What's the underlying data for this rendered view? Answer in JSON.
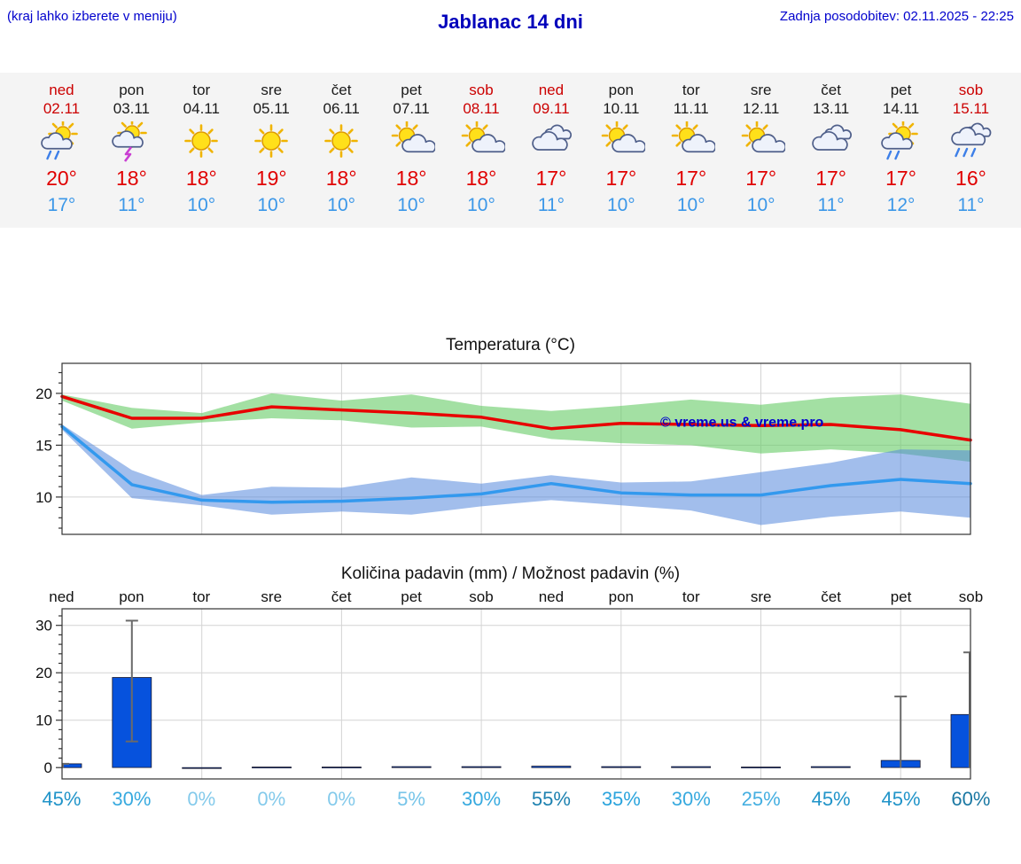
{
  "header": {
    "left_note": "(kraj lahko izberete v meniju)",
    "title": "Jablanac 14 dni",
    "last_update": "Zadnja posodobitev: 02.11.2025 - 22:25"
  },
  "colors": {
    "accent_blue": "#0000cd",
    "high_temp": "#e00000",
    "low_temp": "#3b97e8",
    "weekend_red": "#cc0000",
    "bar_blue": "#0652dd"
  },
  "forecast": {
    "days": [
      {
        "day": "ned",
        "date": "02.11",
        "icon": "sun-rain",
        "high": "20°",
        "low": "17°",
        "weekend": true
      },
      {
        "day": "pon",
        "date": "03.11",
        "icon": "sun-storm",
        "high": "18°",
        "low": "11°",
        "weekend": false
      },
      {
        "day": "tor",
        "date": "04.11",
        "icon": "sun",
        "high": "18°",
        "low": "10°",
        "weekend": false
      },
      {
        "day": "sre",
        "date": "05.11",
        "icon": "sun",
        "high": "19°",
        "low": "10°",
        "weekend": false
      },
      {
        "day": "čet",
        "date": "06.11",
        "icon": "sun",
        "high": "18°",
        "low": "10°",
        "weekend": false
      },
      {
        "day": "pet",
        "date": "07.11",
        "icon": "sun-cloud",
        "high": "18°",
        "low": "10°",
        "weekend": false
      },
      {
        "day": "sob",
        "date": "08.11",
        "icon": "sun-cloud",
        "high": "18°",
        "low": "10°",
        "weekend": true
      },
      {
        "day": "ned",
        "date": "09.11",
        "icon": "cloud",
        "high": "17°",
        "low": "11°",
        "weekend": true
      },
      {
        "day": "pon",
        "date": "10.11",
        "icon": "sun-cloud",
        "high": "17°",
        "low": "10°",
        "weekend": false
      },
      {
        "day": "tor",
        "date": "11.11",
        "icon": "sun-cloud",
        "high": "17°",
        "low": "10°",
        "weekend": false
      },
      {
        "day": "sre",
        "date": "12.11",
        "icon": "sun-cloud",
        "high": "17°",
        "low": "10°",
        "weekend": false
      },
      {
        "day": "čet",
        "date": "13.11",
        "icon": "cloud",
        "high": "17°",
        "low": "11°",
        "weekend": false
      },
      {
        "day": "pet",
        "date": "14.11",
        "icon": "sun-rain",
        "high": "17°",
        "low": "12°",
        "weekend": false
      },
      {
        "day": "sob",
        "date": "15.11",
        "icon": "cloud-rain",
        "high": "16°",
        "low": "11°",
        "weekend": true
      }
    ]
  },
  "chart_data": [
    {
      "type": "line",
      "title": "Temperatura (°C)",
      "categories": [
        "ned",
        "pon",
        "tor",
        "sre",
        "čet",
        "pet",
        "sob",
        "ned",
        "pon",
        "tor",
        "sre",
        "čet",
        "pet",
        "sob"
      ],
      "series": [
        {
          "name": "max temperature",
          "color": "#e80000",
          "values": [
            19.7,
            17.6,
            17.6,
            18.7,
            18.4,
            18.1,
            17.7,
            16.6,
            17.1,
            17.0,
            16.9,
            17.0,
            16.5,
            15.5
          ]
        },
        {
          "name": "min temperature",
          "color": "#3399ee",
          "values": [
            16.8,
            11.2,
            9.7,
            9.5,
            9.6,
            9.9,
            10.3,
            11.3,
            10.4,
            10.2,
            10.2,
            11.1,
            11.7,
            11.3
          ]
        }
      ],
      "bands": [
        {
          "name": "max range",
          "color": "#66cc66",
          "opacity": 0.6,
          "upper": [
            19.9,
            18.6,
            18.1,
            20.0,
            19.3,
            19.9,
            18.8,
            18.3,
            18.8,
            19.4,
            18.9,
            19.6,
            19.9,
            19.0
          ],
          "lower": [
            19.3,
            16.6,
            17.2,
            17.6,
            17.4,
            16.7,
            16.8,
            15.6,
            15.2,
            15.0,
            14.2,
            14.6,
            14.2,
            13.4
          ]
        },
        {
          "name": "min range",
          "color": "#5588dd",
          "opacity": 0.55,
          "upper": [
            17.0,
            12.6,
            10.2,
            11.0,
            10.9,
            11.9,
            11.3,
            12.1,
            11.4,
            11.5,
            12.4,
            13.3,
            14.6,
            14.5
          ],
          "lower": [
            16.5,
            9.9,
            9.2,
            8.3,
            8.6,
            8.3,
            9.1,
            9.7,
            9.2,
            8.7,
            7.3,
            8.1,
            8.6,
            8.0
          ]
        }
      ],
      "ylim": [
        6.4,
        22.9
      ],
      "yticks": [
        10,
        15,
        20
      ],
      "grid": "light gray; vertical line every 2 days",
      "legend_position": "none",
      "watermark": "© vreme.us & vreme.pro"
    },
    {
      "type": "bar",
      "title": "Količina padavin (mm) / Možnost padavin (%)",
      "categories": [
        "ned",
        "pon",
        "tor",
        "sre",
        "čet",
        "pet",
        "sob",
        "ned",
        "pon",
        "tor",
        "sre",
        "čet",
        "pet",
        "sob"
      ],
      "values": [
        0.8,
        19,
        0,
        0.1,
        0.1,
        0.2,
        0.2,
        0.3,
        0.2,
        0.2,
        0.1,
        0.2,
        1.5,
        11.2
      ],
      "whisker_low": [
        0,
        5.5,
        0,
        0,
        0,
        0,
        0,
        0,
        0,
        0,
        0,
        0,
        0,
        0
      ],
      "whisker_high": [
        0.8,
        31,
        0,
        0,
        0,
        0,
        0,
        0,
        0,
        0,
        0,
        0,
        15,
        24.3
      ],
      "probabilities": [
        "45%",
        "30%",
        "0%",
        "0%",
        "0%",
        "5%",
        "30%",
        "55%",
        "35%",
        "30%",
        "25%",
        "45%",
        "45%",
        "60%"
      ],
      "ylim": [
        -2.4,
        33.5
      ],
      "yticks": [
        0,
        10,
        20,
        30
      ],
      "grid": "light gray; vertical line every 2 days"
    }
  ]
}
